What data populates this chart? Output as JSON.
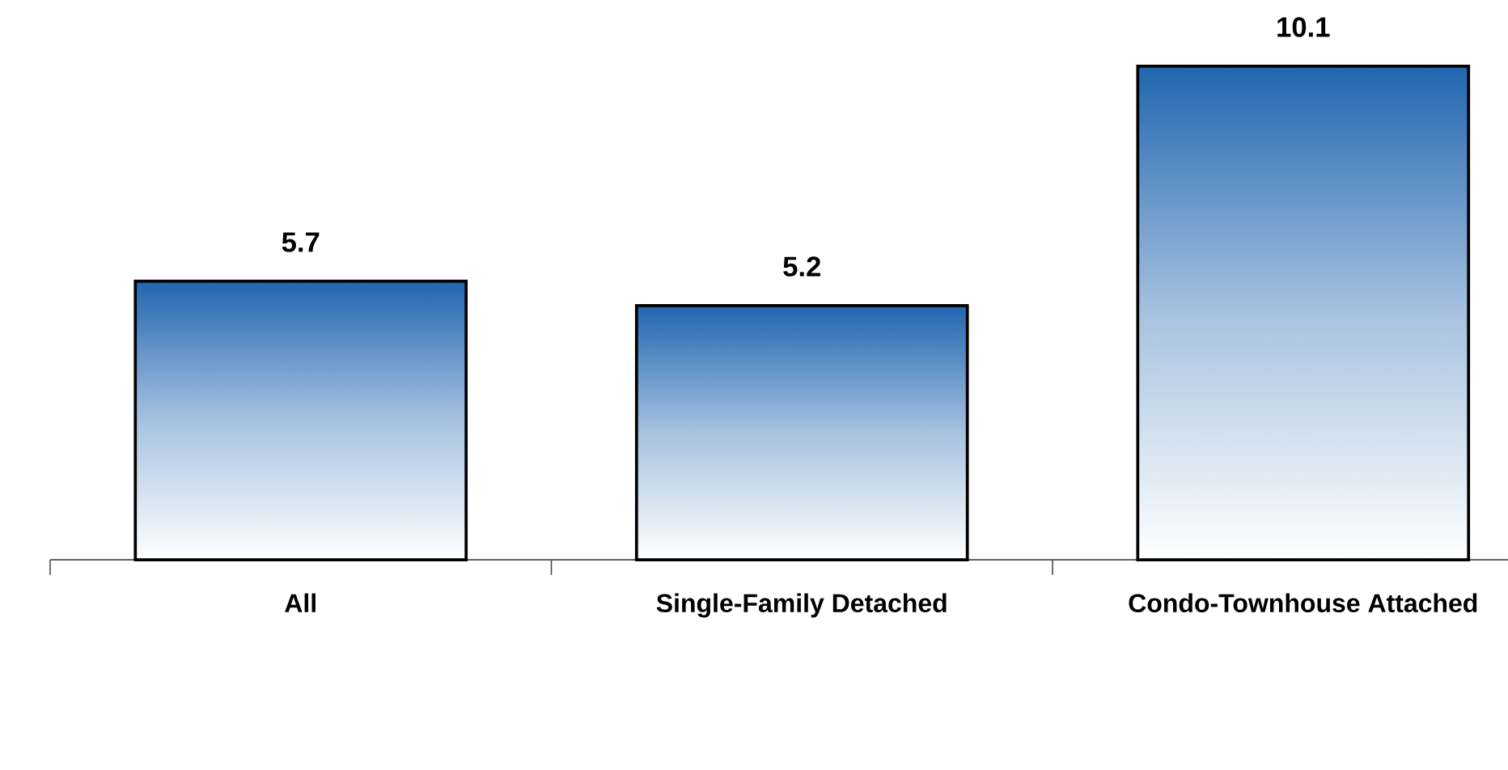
{
  "chart_data": {
    "type": "bar",
    "categories": [
      "All",
      "Single-Family Detached",
      "Condo-Townhouse Attached"
    ],
    "values": [
      5.7,
      5.2,
      10.1
    ],
    "color": "#2166b0",
    "data_labels": true
  }
}
